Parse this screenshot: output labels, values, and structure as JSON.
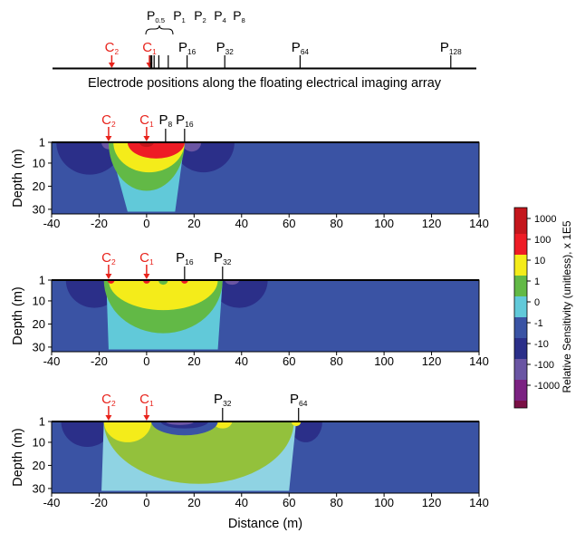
{
  "chart_data": {
    "type": "heatmap",
    "array_caption": "Electrode positions along the floating electrical imaging array",
    "array_electrodes": [
      {
        "main": "C",
        "sub": "2",
        "x": -16,
        "color": "red"
      },
      {
        "main": "C",
        "sub": "1",
        "x": 0,
        "color": "red"
      },
      {
        "main": "P",
        "sub": "0.5",
        "x": 0.5,
        "color": "black"
      },
      {
        "main": "P",
        "sub": "1",
        "x": 1,
        "color": "black"
      },
      {
        "main": "P",
        "sub": "2",
        "x": 2,
        "color": "black"
      },
      {
        "main": "P",
        "sub": "4",
        "x": 4,
        "color": "black"
      },
      {
        "main": "P",
        "sub": "8",
        "x": 8,
        "color": "black"
      },
      {
        "main": "P",
        "sub": "16",
        "x": 16,
        "color": "black"
      },
      {
        "main": "P",
        "sub": "32",
        "x": 32,
        "color": "black"
      },
      {
        "main": "P",
        "sub": "64",
        "x": 64,
        "color": "black"
      },
      {
        "main": "P",
        "sub": "128",
        "x": 128,
        "color": "black"
      }
    ],
    "xlim": [
      -40,
      140
    ],
    "ylim": [
      1,
      32
    ],
    "xticks": [
      "-40",
      "-20",
      "0",
      "20",
      "40",
      "60",
      "80",
      "100",
      "120",
      "140"
    ],
    "yticks": [
      "1",
      "10",
      "20",
      "30"
    ],
    "ylabel": "Depth (m)",
    "xlabel": "Distance (m)",
    "colorbar": {
      "label": "Relative Sensitivity (unitless), x 1E5",
      "levels": [
        {
          "label": "1000",
          "color": "#c4161c"
        },
        {
          "label": "100",
          "color": "#ee1c25"
        },
        {
          "label": "10",
          "color": "#f4ec1a"
        },
        {
          "label": "1",
          "color": "#62b946"
        },
        {
          "label": "0",
          "color": "#61c9d9"
        },
        {
          "label": "-1",
          "color": "#3a53a4"
        },
        {
          "label": "-10",
          "color": "#2b2f89"
        },
        {
          "label": "-100",
          "color": "#6a55a3"
        },
        {
          "label": "-1000",
          "color": "#7b2282"
        }
      ],
      "bottom_color": "#7a1045"
    },
    "panels": [
      {
        "electrodes": [
          {
            "main": "C",
            "sub": "2",
            "x": -16,
            "color": "red"
          },
          {
            "main": "C",
            "sub": "1",
            "x": 0,
            "color": "red"
          },
          {
            "main": "P",
            "sub": "8",
            "x": 8,
            "color": "black"
          },
          {
            "main": "P",
            "sub": "16",
            "x": 16,
            "color": "black"
          }
        ],
        "background": "#3a53a4",
        "zones": [
          {
            "level": "-10",
            "color": "#2b2f89",
            "shape": "lobe",
            "cx": -24,
            "cy": 1,
            "rx": 14,
            "ry": 14
          },
          {
            "level": "-10",
            "color": "#2b2f89",
            "shape": "lobe",
            "cx": 24,
            "cy": 1,
            "rx": 13,
            "ry": 13
          },
          {
            "level": "-100",
            "color": "#6a55a3",
            "shape": "lobe",
            "cx": -16,
            "cy": 1,
            "rx": 3,
            "ry": 3
          },
          {
            "level": "-100",
            "color": "#6a55a3",
            "shape": "lobe",
            "cx": 19,
            "cy": 1,
            "rx": 4,
            "ry": 4
          },
          {
            "level": "0",
            "color": "#61c9d9",
            "shape": "bowl",
            "x1": -16,
            "x2": 16,
            "xb1": -8,
            "xb2": 12,
            "depth": 31
          },
          {
            "level": "1",
            "color": "#62b946",
            "shape": "lobe",
            "cx": 0,
            "cy": 1,
            "rx": 16,
            "ry": 21
          },
          {
            "level": "10",
            "color": "#f4ec1a",
            "shape": "lobe",
            "cx": 1,
            "cy": 1,
            "rx": 15,
            "ry": 13
          },
          {
            "level": "100",
            "color": "#ee1c25",
            "shape": "lobe",
            "cx": 4,
            "cy": 1,
            "rx": 12,
            "ry": 7
          },
          {
            "level": "1000",
            "color": "#c4161c",
            "shape": "lobe",
            "cx": 0,
            "cy": 1,
            "rx": 3,
            "ry": 2
          }
        ]
      },
      {
        "electrodes": [
          {
            "main": "C",
            "sub": "2",
            "x": -16,
            "color": "red"
          },
          {
            "main": "C",
            "sub": "1",
            "x": 0,
            "color": "red"
          },
          {
            "main": "P",
            "sub": "16",
            "x": 16,
            "color": "black"
          },
          {
            "main": "P",
            "sub": "32",
            "x": 32,
            "color": "black"
          }
        ],
        "background": "#3a53a4",
        "zones": [
          {
            "level": "-10",
            "color": "#2b2f89",
            "shape": "lobe",
            "cx": -22,
            "cy": 1,
            "rx": 12,
            "ry": 12
          },
          {
            "level": "-10",
            "color": "#2b2f89",
            "shape": "lobe",
            "cx": 39,
            "cy": 1,
            "rx": 12,
            "ry": 12
          },
          {
            "level": "-100",
            "color": "#6a55a3",
            "shape": "lobe",
            "cx": 36,
            "cy": 1,
            "rx": 3,
            "ry": 2
          },
          {
            "level": "0",
            "color": "#61c9d9",
            "shape": "bowl",
            "x1": -17,
            "x2": 32,
            "xb1": -16,
            "xb2": 30,
            "depth": 31
          },
          {
            "level": "1",
            "color": "#62b946",
            "shape": "lobe",
            "cx": 7,
            "cy": 1,
            "rx": 25,
            "ry": 23
          },
          {
            "level": "10",
            "color": "#f4ec1a",
            "shape": "lobe",
            "cx": 7,
            "cy": 1,
            "rx": 23,
            "ry": 13
          },
          {
            "level": "100",
            "color": "#ee1c25",
            "shape": "lobe",
            "cx": -15,
            "cy": 1,
            "rx": 1.5,
            "ry": 1.5
          },
          {
            "level": "100",
            "color": "#ee1c25",
            "shape": "lobe",
            "cx": 0,
            "cy": 1,
            "rx": 1.5,
            "ry": 1.5
          },
          {
            "level": "100",
            "color": "#ee1c25",
            "shape": "lobe",
            "cx": 16,
            "cy": 1,
            "rx": 1.5,
            "ry": 1.5
          },
          {
            "level": "1",
            "color": "#62b946",
            "shape": "lobe",
            "cx": 7,
            "cy": 1,
            "rx": 2,
            "ry": 2
          }
        ]
      },
      {
        "electrodes": [
          {
            "main": "C",
            "sub": "2",
            "x": -16,
            "color": "red"
          },
          {
            "main": "C",
            "sub": "1",
            "x": 0,
            "color": "red"
          },
          {
            "main": "P",
            "sub": "32",
            "x": 32,
            "color": "black"
          },
          {
            "main": "P",
            "sub": "64",
            "x": 64,
            "color": "black"
          }
        ],
        "background": "#3a53a4",
        "zones": [
          {
            "level": "-10",
            "color": "#2b2f89",
            "shape": "lobe",
            "cx": -25,
            "cy": 1,
            "rx": 11,
            "ry": 11
          },
          {
            "level": "-10",
            "color": "#2b2f89",
            "shape": "lobe",
            "cx": 67,
            "cy": 1,
            "rx": 7,
            "ry": 9
          },
          {
            "level": "0",
            "color": "#8fd3e3",
            "shape": "bowl",
            "x1": -18,
            "x2": 63,
            "xb1": -19,
            "xb2": 60,
            "depth": 31
          },
          {
            "level": "1",
            "color": "#93c13c",
            "shape": "lobe",
            "cx": 22,
            "cy": 1,
            "rx": 40,
            "ry": 27
          },
          {
            "level": "10",
            "color": "#f4ec1a",
            "shape": "lobe",
            "cx": -8,
            "cy": 1,
            "rx": 10,
            "ry": 9
          },
          {
            "level": "10",
            "color": "#f4ec1a",
            "shape": "lobe",
            "cx": 32,
            "cy": 1,
            "rx": 4,
            "ry": 3
          },
          {
            "level": "-1",
            "color": "#3a53a4",
            "shape": "lobe",
            "cx": 16,
            "cy": 1,
            "rx": 14,
            "ry": 6
          },
          {
            "level": "-10",
            "color": "#2b2f89",
            "shape": "lobe",
            "cx": 16,
            "cy": 1,
            "rx": 10,
            "ry": 3
          },
          {
            "level": "-100",
            "color": "#6a55a3",
            "shape": "lobe",
            "cx": 14,
            "cy": 1,
            "rx": 6,
            "ry": 1.5
          },
          {
            "level": "10",
            "color": "#f4ec1a",
            "shape": "lobe",
            "cx": 63,
            "cy": 1,
            "rx": 2,
            "ry": 2
          }
        ]
      }
    ]
  }
}
